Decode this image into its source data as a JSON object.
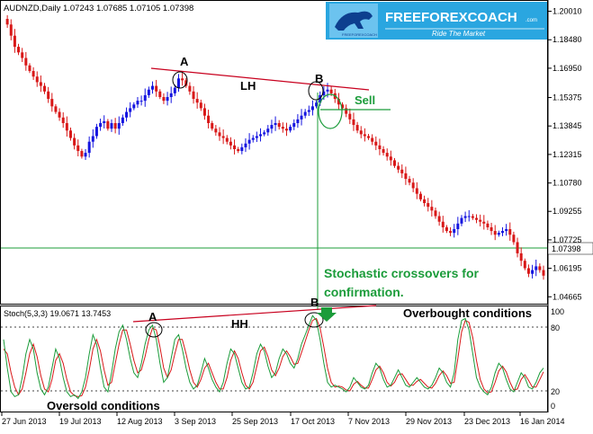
{
  "header": {
    "symbol_line": "AUDNZD,Daily  1.07243 1.07685 1.07105 1.07398"
  },
  "logo": {
    "brand": "FREEFOREXCOACH",
    "suffix": ".com",
    "tagline": "Ride The Market",
    "mini": "FREEFOREXCOACH"
  },
  "price_axis": {
    "ticks": [
      "1.20010",
      "1.18480",
      "1.16950",
      "1.15375",
      "1.13845",
      "1.12315",
      "1.10780",
      "1.09255",
      "1.07725",
      "1.06195",
      "1.04665"
    ],
    "current_price": "1.07398",
    "range": [
      1.0434,
      1.2052
    ]
  },
  "stoch_panel": {
    "label": "Stoch(5,3,3) 19.0671 13.7453",
    "levels": [
      "100",
      "80",
      "20",
      "0"
    ]
  },
  "date_axis": {
    "labels": [
      "27 Jun 2013",
      "19 Jul 2013",
      "12 Aug 2013",
      "3 Sep 2013",
      "25 Sep 2013",
      "17 Oct 2013",
      "7 Nov 2013",
      "29 Nov 2013",
      "23 Dec 2013",
      "16 Jan 2014"
    ]
  },
  "annotations": {
    "top_a": "A",
    "top_b": "B",
    "lh": "LH",
    "sell": "Sell",
    "note_line1": "Stochastic crossovers for",
    "note_line2": "confirmation.",
    "stoch_a": "A",
    "stoch_b": "B",
    "hh": "HH",
    "overbought": "Overbought conditions",
    "oversold": "Oversold conditions"
  },
  "colors": {
    "bull": "#1515e0",
    "bear": "#d81818",
    "trendline": "#c8001e",
    "annotation_green": "#1a9e3c",
    "stoch_main": "#1b9c3a",
    "stoch_signal": "#d81818"
  },
  "chart_data": {
    "type": "candlestick",
    "price_path": [
      1.196,
      1.193,
      1.187,
      1.181,
      1.178,
      1.175,
      1.171,
      1.168,
      1.165,
      1.162,
      1.16,
      1.157,
      1.153,
      1.149,
      1.146,
      1.143,
      1.14,
      1.136,
      1.132,
      1.128,
      1.125,
      1.122,
      1.124,
      1.13,
      1.133,
      1.138,
      1.14,
      1.141,
      1.137,
      1.14,
      1.137,
      1.14,
      1.143,
      1.146,
      1.148,
      1.15,
      1.152,
      1.152,
      1.155,
      1.158,
      1.16,
      1.157,
      1.154,
      1.152,
      1.154,
      1.156,
      1.159,
      1.164,
      1.163,
      1.16,
      1.157,
      1.153,
      1.151,
      1.148,
      1.144,
      1.14,
      1.137,
      1.135,
      1.133,
      1.132,
      1.13,
      1.128,
      1.126,
      1.125,
      1.127,
      1.129,
      1.131,
      1.132,
      1.133,
      1.134,
      1.135,
      1.137,
      1.139,
      1.14,
      1.138,
      1.137,
      1.136,
      1.138,
      1.14,
      1.142,
      1.144,
      1.146,
      1.147,
      1.149,
      1.151,
      1.155,
      1.157,
      1.158,
      1.156,
      1.153,
      1.15,
      1.148,
      1.145,
      1.142,
      1.139,
      1.136,
      1.134,
      1.133,
      1.132,
      1.13,
      1.128,
      1.126,
      1.124,
      1.122,
      1.12,
      1.117,
      1.115,
      1.113,
      1.11,
      1.108,
      1.105,
      1.102,
      1.099,
      1.097,
      1.095,
      1.093,
      1.09,
      1.087,
      1.084,
      1.082,
      1.081,
      1.083,
      1.086,
      1.089,
      1.09,
      1.09,
      1.089,
      1.088,
      1.087,
      1.086,
      1.084,
      1.082,
      1.08,
      1.081,
      1.082,
      1.083,
      1.08,
      1.076,
      1.07,
      1.066,
      1.062,
      1.059,
      1.061,
      1.063,
      1.061,
      1.058
    ],
    "stoch_path": [
      70,
      40,
      15,
      10,
      12,
      30,
      55,
      70,
      60,
      35,
      18,
      12,
      20,
      40,
      60,
      50,
      30,
      15,
      10,
      12,
      8,
      15,
      30,
      55,
      75,
      65,
      40,
      20,
      15,
      35,
      60,
      78,
      85,
      70,
      50,
      35,
      30,
      45,
      65,
      80,
      85,
      70,
      45,
      25,
      30,
      50,
      70,
      75,
      60,
      40,
      25,
      18,
      22,
      35,
      50,
      40,
      28,
      20,
      15,
      25,
      45,
      60,
      55,
      40,
      25,
      18,
      20,
      35,
      55,
      65,
      58,
      42,
      30,
      35,
      50,
      60,
      55,
      45,
      40,
      50,
      65,
      75,
      85,
      95,
      90,
      70,
      45,
      25,
      20,
      22,
      20,
      18,
      15,
      20,
      30,
      25,
      20,
      18,
      22,
      35,
      45,
      40,
      28,
      20,
      22,
      30,
      38,
      30,
      22,
      20,
      25,
      30,
      25,
      20,
      18,
      22,
      30,
      40,
      35,
      25,
      20,
      35,
      70,
      90,
      92,
      80,
      55,
      30,
      20,
      15,
      12,
      20,
      35,
      45,
      40,
      28,
      18,
      15,
      25,
      35,
      30,
      20,
      18,
      25,
      35,
      40
    ],
    "signal_path": [
      60,
      55,
      35,
      20,
      12,
      18,
      35,
      55,
      65,
      52,
      32,
      18,
      15,
      28,
      48,
      55,
      45,
      28,
      15,
      11,
      10,
      11,
      20,
      38,
      60,
      70,
      58,
      38,
      22,
      25,
      45,
      65,
      80,
      80,
      65,
      48,
      35,
      38,
      52,
      70,
      82,
      80,
      62,
      40,
      30,
      38,
      55,
      70,
      70,
      55,
      38,
      25,
      20,
      28,
      40,
      45,
      35,
      25,
      18,
      18,
      30,
      48,
      58,
      50,
      35,
      22,
      18,
      25,
      42,
      58,
      62,
      52,
      38,
      32,
      40,
      52,
      58,
      52,
      44,
      45,
      56,
      68,
      80,
      90,
      92,
      82,
      62,
      40,
      25,
      20,
      21,
      20,
      17,
      16,
      23,
      26,
      22,
      19,
      19,
      28,
      38,
      42,
      35,
      25,
      21,
      25,
      33,
      34,
      28,
      22,
      22,
      26,
      28,
      24,
      20,
      19,
      24,
      32,
      37,
      32,
      24,
      25,
      50,
      78,
      90,
      88,
      72,
      48,
      28,
      18,
      14,
      15,
      25,
      37,
      42,
      36,
      25,
      17,
      18,
      28,
      33,
      27,
      20,
      20,
      28,
      36
    ]
  }
}
